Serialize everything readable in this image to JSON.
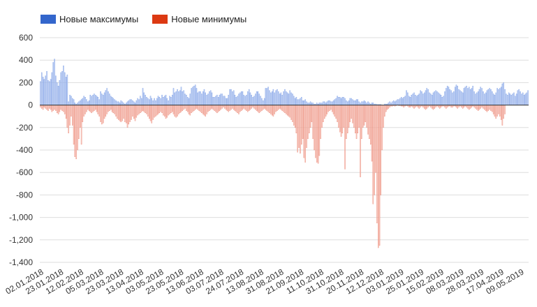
{
  "legend": {
    "highs_label": "Новые максимумы",
    "lows_label": "Новые минимумы"
  },
  "colors": {
    "highs_fill": "#c8d6f4",
    "highs_stroke": "#5b86e0",
    "lows_fill": "#f7d3cc",
    "lows_stroke": "#e8674f",
    "legend_highs": "#3366cc",
    "legend_lows": "#dc3912",
    "grid": "#dddddd",
    "zero_line": "#333333"
  },
  "chart_data": {
    "type": "bar",
    "ylim": [
      -1400,
      600
    ],
    "yticks": [
      600,
      400,
      200,
      0,
      -200,
      -400,
      -600,
      -800,
      -1000,
      -1200,
      -1400
    ],
    "ytick_labels": [
      "600",
      "400",
      "200",
      "0",
      "-200",
      "-400",
      "-600",
      "-800",
      "-1,000",
      "-1,200",
      "-1,400"
    ],
    "xtick_labels": [
      "02.01.2018",
      "23.01.2018",
      "12.02.2018",
      "05.03.2018",
      "23.03.2018",
      "13.04.2018",
      "03.05.2018",
      "23.05.2018",
      "13.06.2018",
      "03.07.2018",
      "24.07.2018",
      "13.08.2018",
      "31.08.2018",
      "21.09.2018",
      "11.10.2018",
      "31.10.2018",
      "20.11.2018",
      "12.12.2018",
      "03.01.2019",
      "25.01.2019",
      "15.02.2019",
      "08.03.2019",
      "28.03.2019",
      "17.04.2019",
      "09.05.2019"
    ],
    "grid": true,
    "legend_position": "top-left",
    "series": [
      {
        "name": "Новые максимумы",
        "values": [
          210,
          290,
          250,
          230,
          260,
          300,
          220,
          210,
          230,
          290,
          380,
          410,
          260,
          200,
          170,
          220,
          290,
          300,
          350,
          290,
          250,
          270,
          30,
          90,
          80,
          60,
          50,
          20,
          10,
          20,
          30,
          40,
          50,
          60,
          80,
          70,
          50,
          30,
          40,
          90,
          80,
          90,
          100,
          90,
          80,
          70,
          50,
          120,
          100,
          90,
          110,
          130,
          150,
          120,
          100,
          80,
          70,
          60,
          50,
          40,
          30,
          30,
          20,
          40,
          30,
          20,
          10,
          20,
          30,
          40,
          50,
          50,
          40,
          30,
          20,
          40,
          60,
          50,
          80,
          60,
          150,
          110,
          90,
          70,
          60,
          50,
          80,
          60,
          40,
          60,
          40,
          60,
          80,
          70,
          60,
          90,
          70,
          80,
          90,
          60,
          40,
          80,
          70,
          90,
          150,
          110,
          120,
          140,
          120,
          130,
          160,
          120,
          130,
          100,
          90,
          70,
          60,
          100,
          150,
          160,
          170,
          180,
          150,
          110,
          120,
          120,
          100,
          120,
          140,
          110,
          90,
          100,
          120,
          130,
          110,
          70,
          70,
          80,
          90,
          70,
          90,
          100,
          100,
          80,
          80,
          60,
          60,
          90,
          140,
          140,
          120,
          130,
          90,
          70,
          80,
          100,
          110,
          120,
          120,
          90,
          80,
          90,
          120,
          140,
          110,
          90,
          70,
          80,
          100,
          120,
          120,
          100,
          80,
          60,
          40,
          60,
          150,
          150,
          160,
          130,
          110,
          120,
          140,
          110,
          130,
          140,
          120,
          100,
          110,
          90,
          120,
          140,
          120,
          110,
          100,
          130,
          110,
          100,
          80,
          60,
          70,
          50,
          50,
          60,
          70,
          40,
          40,
          50,
          30,
          20,
          20,
          30,
          20,
          20,
          10,
          10,
          20,
          10,
          20,
          20,
          20,
          30,
          30,
          20,
          30,
          40,
          40,
          30,
          30,
          40,
          50,
          60,
          80,
          70,
          70,
          60,
          70,
          70,
          60,
          40,
          30,
          40,
          60,
          60,
          50,
          40,
          40,
          50,
          50,
          30,
          20,
          30,
          30,
          40,
          30,
          20,
          30,
          20,
          10,
          20,
          20,
          10,
          10,
          5,
          5,
          5,
          5,
          0,
          0,
          10,
          10,
          10,
          20,
          30,
          20,
          30,
          40,
          30,
          40,
          50,
          50,
          60,
          70,
          60,
          70,
          80,
          130,
          110,
          80,
          70,
          90,
          100,
          110,
          90,
          80,
          90,
          100,
          130,
          120,
          100,
          110,
          130,
          150,
          140,
          110,
          100,
          90,
          110,
          120,
          130,
          120,
          110,
          100,
          90,
          70,
          80,
          120,
          150,
          170,
          160,
          140,
          130,
          110,
          120,
          160,
          180,
          170,
          140,
          130,
          120,
          110,
          150,
          160,
          170,
          150,
          160,
          140,
          150,
          170,
          120,
          100,
          110,
          120,
          140,
          160,
          150,
          120,
          100,
          110,
          130,
          140,
          150,
          140,
          120,
          100,
          90,
          110,
          150,
          140,
          150,
          160,
          190,
          200,
          140,
          100,
          90,
          110,
          100,
          90,
          100,
          110,
          80,
          100,
          130,
          140,
          120,
          100,
          110,
          90,
          100,
          110,
          130
        ],
        "color": "#5b86e0"
      },
      {
        "name": "Новые минимумы",
        "values": [
          -20,
          -30,
          -40,
          -20,
          -30,
          -40,
          -50,
          -30,
          -40,
          -60,
          -50,
          -40,
          -50,
          -70,
          -80,
          -60,
          -40,
          -50,
          -60,
          -80,
          -120,
          -200,
          -250,
          -180,
          -100,
          -180,
          -350,
          -460,
          -480,
          -400,
          -300,
          -200,
          -350,
          -150,
          -100,
          -80,
          -60,
          -40,
          -50,
          -60,
          -70,
          -60,
          -50,
          -40,
          -60,
          -80,
          -100,
          -150,
          -170,
          -160,
          -120,
          -100,
          -80,
          -60,
          -50,
          -40,
          -60,
          -70,
          -80,
          -100,
          -120,
          -130,
          -140,
          -150,
          -140,
          -120,
          -150,
          -160,
          -200,
          -170,
          -150,
          -130,
          -100,
          -120,
          -140,
          -110,
          -90,
          -80,
          -70,
          -60,
          -50,
          -60,
          -70,
          -80,
          -100,
          -120,
          -140,
          -160,
          -130,
          -110,
          -100,
          -90,
          -80,
          -70,
          -60,
          -70,
          -90,
          -100,
          -120,
          -110,
          -90,
          -80,
          -70,
          -60,
          -80,
          -100,
          -110,
          -100,
          -80,
          -70,
          -60,
          -50,
          -40,
          -30,
          -50,
          -60,
          -80,
          -90,
          -70,
          -60,
          -50,
          -40,
          -30,
          -40,
          -50,
          -60,
          -70,
          -80,
          -90,
          -100,
          -80,
          -60,
          -50,
          -40,
          -30,
          -40,
          -50,
          -60,
          -70,
          -60,
          -50,
          -40,
          -30,
          -20,
          -30,
          -40,
          -50,
          -60,
          -50,
          -40,
          -30,
          -40,
          -50,
          -60,
          -70,
          -80,
          -60,
          -50,
          -40,
          -30,
          -40,
          -50,
          -60,
          -50,
          -40,
          -30,
          -20,
          -30,
          -40,
          -50,
          -60,
          -70,
          -60,
          -50,
          -40,
          -30,
          -40,
          -50,
          -60,
          -70,
          -80,
          -90,
          -100,
          -80,
          -60,
          -50,
          -40,
          -30,
          -40,
          -50,
          -60,
          -70,
          -80,
          -90,
          -100,
          -110,
          -130,
          -150,
          -180,
          -200,
          -250,
          -420,
          -380,
          -430,
          -350,
          -300,
          -470,
          -510,
          -380,
          -300,
          -250,
          -200,
          -150,
          -300,
          -400,
          -470,
          -510,
          -520,
          -450,
          -300,
          -200,
          -150,
          -120,
          -100,
          -80,
          -60,
          -50,
          -40,
          -60,
          -80,
          -100,
          -120,
          -150,
          -200,
          -240,
          -280,
          -250,
          -200,
          -570,
          -300,
          -250,
          -200,
          -150,
          -120,
          -160,
          -200,
          -250,
          -300,
          -250,
          -200,
          -640,
          -300,
          -200,
          -180,
          -150,
          -200,
          -260,
          -300,
          -350,
          -500,
          -880,
          -800,
          -600,
          -1050,
          -1270,
          -1250,
          -800,
          -400,
          -200,
          -100,
          -60,
          -40,
          -30,
          -20,
          -10,
          -10,
          -5,
          -10,
          -5,
          0,
          -5,
          -5,
          -10,
          -10,
          -20,
          -10,
          -5,
          -10,
          -20,
          -20,
          -10,
          -20,
          -30,
          -20,
          -10,
          -20,
          -30,
          -20,
          -10,
          -20,
          -30,
          -40,
          -30,
          -20,
          -10,
          -20,
          -30,
          -40,
          -30,
          -20,
          -10,
          -20,
          -30,
          -20,
          -10,
          -10,
          -20,
          -30,
          -20,
          -10,
          -10,
          -20,
          -20,
          -10,
          -10,
          -20,
          -30,
          -20,
          -10,
          -20,
          -30,
          -20,
          -10,
          -20,
          -30,
          -40,
          -30,
          -20,
          -10,
          -20,
          -30,
          -40,
          -50,
          -40,
          -30,
          -20,
          -30,
          -40,
          -50,
          -60,
          -50,
          -40,
          -50,
          -60,
          -80,
          -100,
          -120,
          -100,
          -80,
          -100,
          -130,
          -180,
          -120,
          -80
        ],
        "color": "#e8674f"
      }
    ]
  }
}
